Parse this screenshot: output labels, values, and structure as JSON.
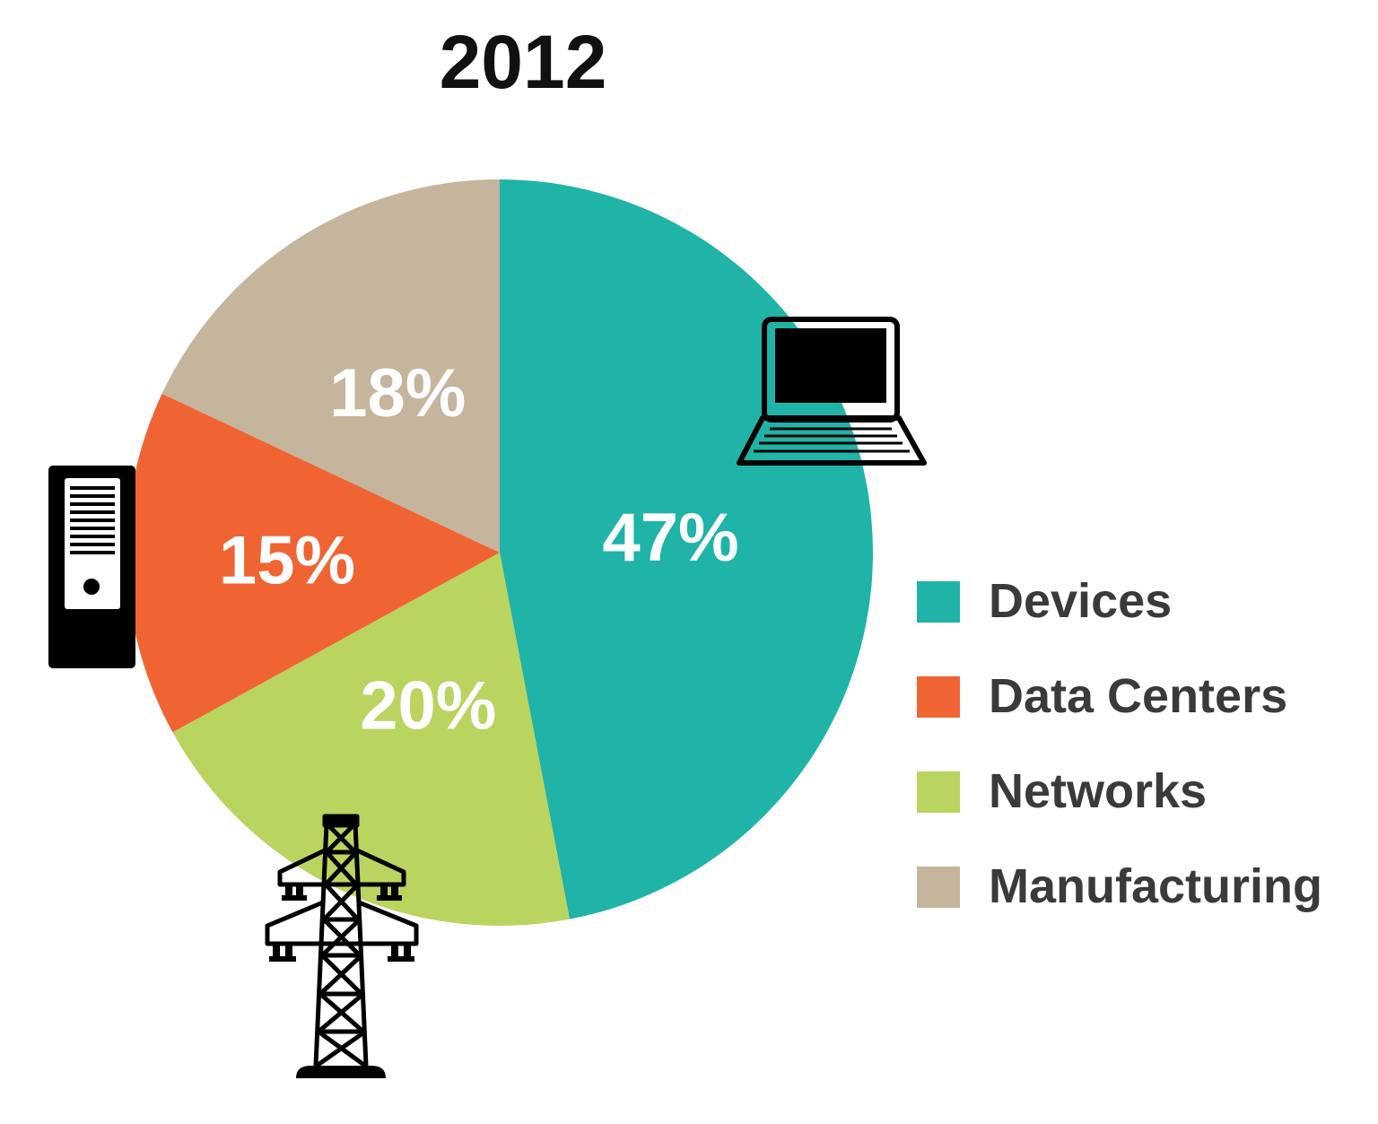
{
  "chart_data": {
    "type": "pie",
    "title": "2012",
    "slices": [
      {
        "label": "Devices",
        "value": 47,
        "display": "47%",
        "color": "#20b3a8"
      },
      {
        "label": "Networks",
        "value": 20,
        "display": "20%",
        "color": "#bad460"
      },
      {
        "label": "Data Centers",
        "value": 15,
        "display": "15%",
        "color": "#f06433"
      },
      {
        "label": "Manufacturing",
        "value": 18,
        "display": "18%",
        "color": "#c4b59c"
      }
    ],
    "legend": {
      "position": "right",
      "items": [
        "Devices",
        "Data Centers",
        "Networks",
        "Manufacturing"
      ]
    }
  },
  "icons": [
    "laptop-icon",
    "server-tower-icon",
    "power-pylon-icon"
  ]
}
